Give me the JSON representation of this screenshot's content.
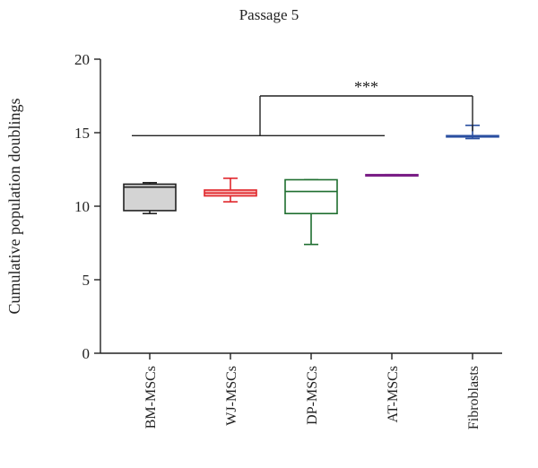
{
  "chart_data": {
    "type": "box",
    "title": "Passage 5",
    "xlabel": "",
    "ylabel": "Cumulative population doublings",
    "ylim": [
      0,
      20
    ],
    "yticks": [
      0,
      5,
      10,
      15,
      20
    ],
    "categories": [
      "BM-MSCs",
      "WJ-MSCs",
      "DP-MSCs",
      "AT-MSCs",
      "Fibroblasts"
    ],
    "boxes": [
      {
        "category": "BM-MSCs",
        "min": 9.5,
        "q1": 9.7,
        "median": 11.3,
        "q3": 11.5,
        "max": 11.6,
        "color": "#222222",
        "fill": "#d4d4d4"
      },
      {
        "category": "WJ-MSCs",
        "min": 10.3,
        "q1": 10.7,
        "median": 10.9,
        "q3": 11.1,
        "max": 11.9,
        "color": "#e0262b",
        "fill": "#f6b2b2"
      },
      {
        "category": "DP-MSCs",
        "min": 7.4,
        "q1": 9.5,
        "median": 11.0,
        "q3": 11.8,
        "max": 11.8,
        "color": "#1e6e2f",
        "fill": "#ffffff"
      },
      {
        "category": "AT-MSCs",
        "min": 12.1,
        "q1": 12.1,
        "median": 12.1,
        "q3": 12.15,
        "max": 12.15,
        "color": "#7a1f86",
        "fill": "#ffffff"
      },
      {
        "category": "Fibroblasts",
        "min": 14.6,
        "q1": 14.75,
        "median": 14.75,
        "q3": 14.8,
        "max": 15.5,
        "color": "#2a4fa0",
        "fill": "#ffffff"
      }
    ],
    "significance": {
      "label": "***",
      "group_line_y": 14.8,
      "bracket_top_y": 17.5,
      "from_category": "BM-MSCs",
      "to_category": "AT-MSCs",
      "target_category": "Fibroblasts"
    },
    "grid": false,
    "legend": "none"
  },
  "colors": {
    "axis": "#222222",
    "bracket": "#222222"
  }
}
